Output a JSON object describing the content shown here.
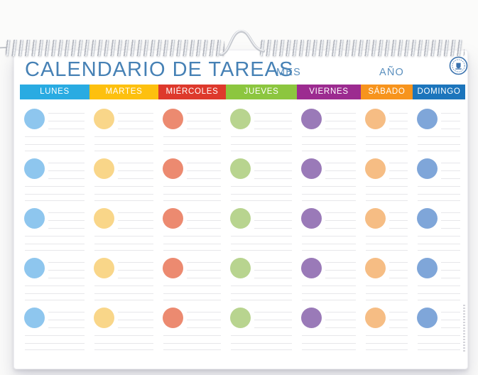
{
  "page": {
    "title": "CALENDARIO DE TAREAS",
    "month_label": "MES",
    "year_label": "AÑO"
  },
  "days": [
    {
      "label": "LUNES",
      "header_color": "#29abe2",
      "dot_color": "#8ec6ee"
    },
    {
      "label": "MARTES",
      "header_color": "#fdc00f",
      "dot_color": "#f9d689"
    },
    {
      "label": "MIÉRCOLES",
      "header_color": "#de392c",
      "dot_color": "#ec8a70"
    },
    {
      "label": "JUEVES",
      "header_color": "#8cc63f",
      "dot_color": "#b8d48f"
    },
    {
      "label": "VIERNES",
      "header_color": "#9c2b90",
      "dot_color": "#9a7ab8"
    },
    {
      "label": "SÁBADO",
      "header_color": "#f7941d",
      "dot_color": "#f6bd84"
    },
    {
      "label": "DOMINGO",
      "header_color": "#1c75bc",
      "dot_color": "#7fa6d9"
    }
  ],
  "grid": {
    "rows": 5,
    "columns": 7,
    "short_lines_per_cell": 3,
    "long_lines_per_cell": 3
  },
  "colors": {
    "title_text": "#4681b5",
    "field_label_text": "#5a8fbe",
    "rule_line": "#e7e7ea",
    "binding_wire": "#c6c9cf",
    "logo_blue": "#3a72ae",
    "paper": "#ffffff"
  }
}
